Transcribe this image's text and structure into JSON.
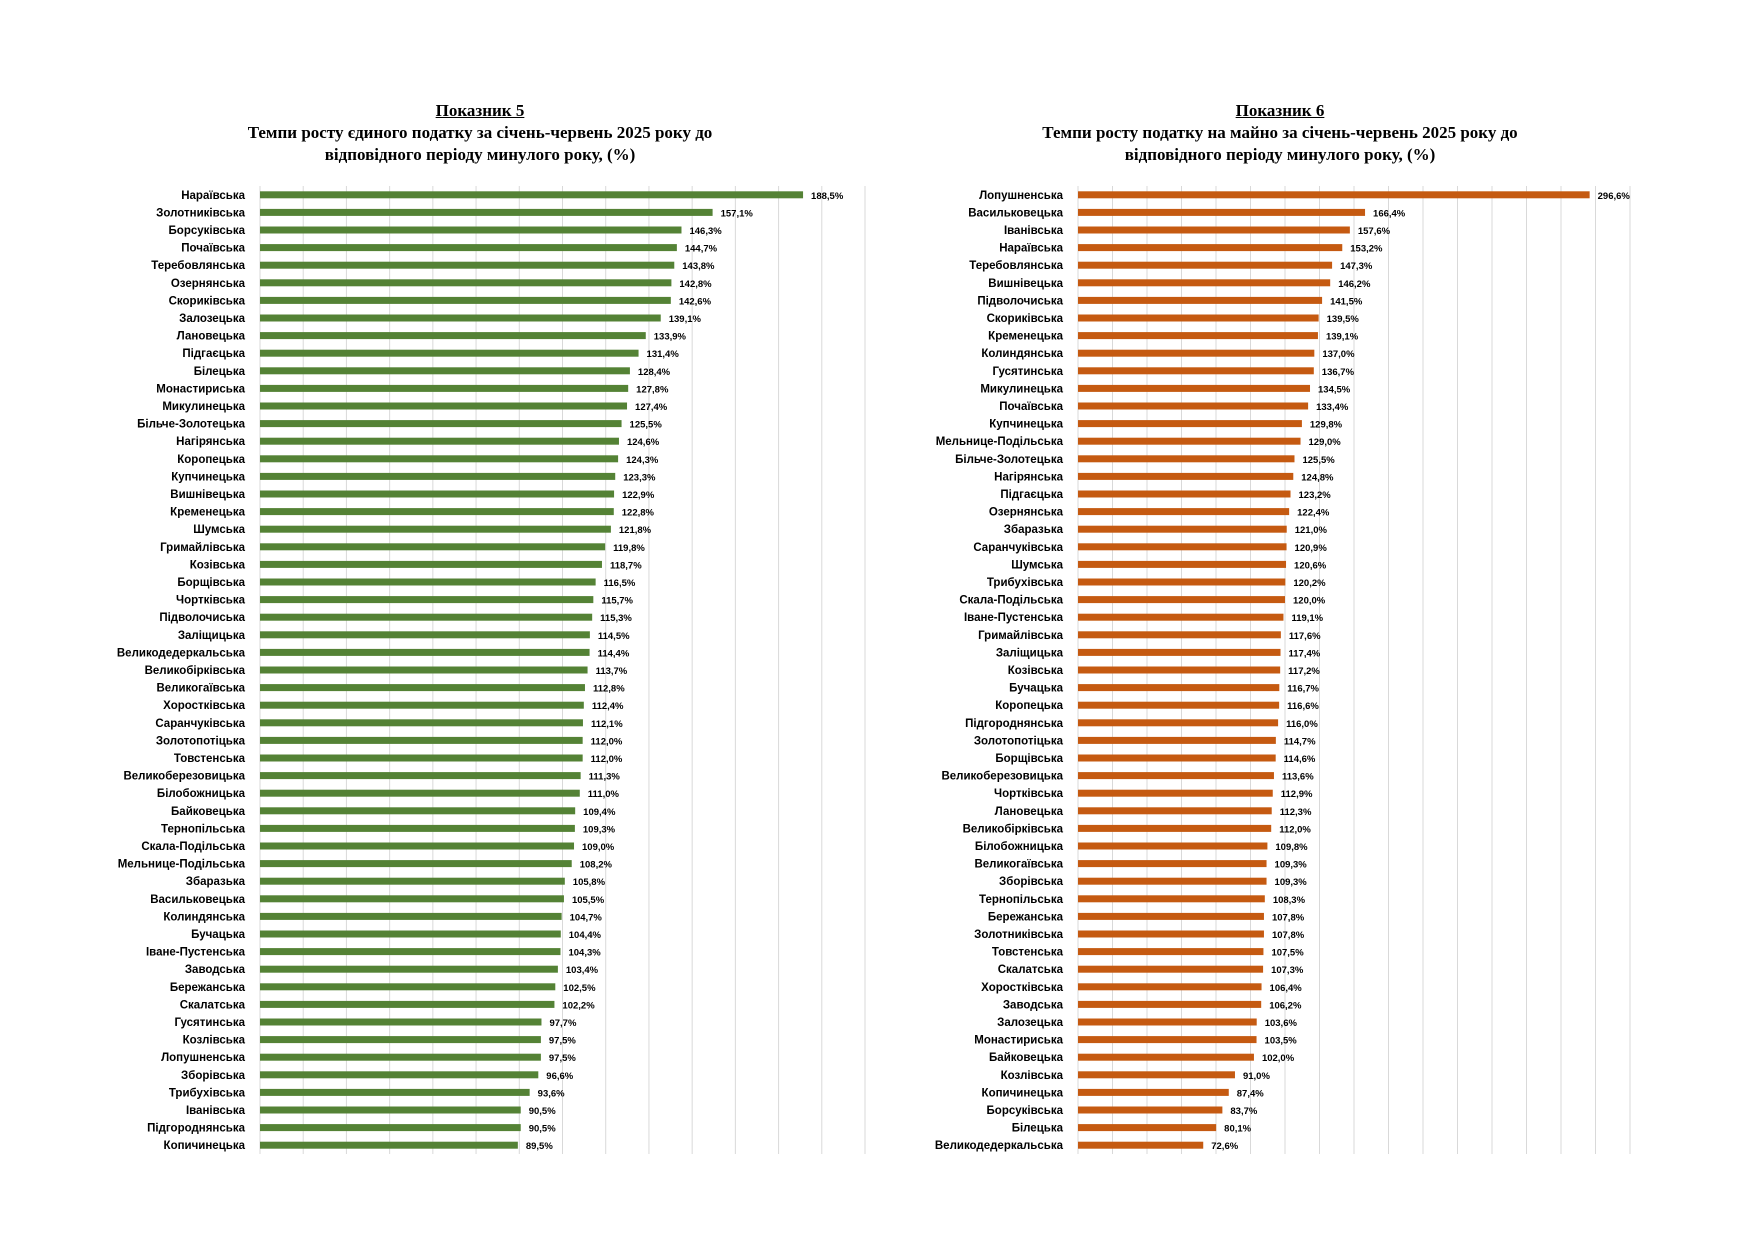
{
  "chart_data": [
    {
      "type": "bar",
      "orientation": "horizontal",
      "title_heading": "Показник 5",
      "title_lines": [
        "Темпи росту єдиного податку за  січень-червень 2025 року до",
        "відповідного періоду минулого року, (%)"
      ],
      "color": "#548235",
      "grid": true,
      "xlim": [
        0,
        210
      ],
      "categories": [
        "Нараївська",
        "Золотниківська",
        "Борсуківська",
        "Почаївська",
        "Теребовлянська",
        "Озернянська",
        "Скориківська",
        "Залозецька",
        "Лановецька",
        "Підгаєцька",
        "Білецька",
        "Монастириська",
        "Микулинецька",
        "Більче-Золотецька",
        "Нагірянська",
        "Коропецька",
        "Купчинецька",
        "Вишнівецька",
        "Кременецька",
        "Шумська",
        "Гримайлівська",
        "Козівська",
        "Борщівська",
        "Чортківська",
        "Підволочиська",
        "Заліщицька",
        "Великодедеркальська",
        "Великобірківська",
        "Великогаївська",
        "Хоростківська",
        "Саранчуківська",
        "Золотопотіцька",
        "Товстенська",
        "Великоберезовицька",
        "Білобожницька",
        "Байковецька",
        "Тернопільська",
        "Скала-Подільська",
        "Мельнице-Подільська",
        "Збаразька",
        "Васильковецька",
        "Колиндянська",
        "Бучацька",
        "Іване-Пустенська",
        "Заводська",
        "Бережанська",
        "Скалатська",
        "Гусятинська",
        "Козлівська",
        "Лопушненська",
        "Зборівська",
        "Трибухівська",
        "Іванівська",
        "Підгороднянська",
        "Копичинецька"
      ],
      "values": [
        188.5,
        157.1,
        146.3,
        144.7,
        143.8,
        142.8,
        142.6,
        139.1,
        133.9,
        131.4,
        128.4,
        127.8,
        127.4,
        125.5,
        124.6,
        124.3,
        123.3,
        122.9,
        122.8,
        121.8,
        119.8,
        118.7,
        116.5,
        115.7,
        115.3,
        114.5,
        114.4,
        113.7,
        112.8,
        112.4,
        112.1,
        112.0,
        112.0,
        111.3,
        111.0,
        109.4,
        109.3,
        109.0,
        108.2,
        105.8,
        105.5,
        104.7,
        104.4,
        104.3,
        103.4,
        102.5,
        102.2,
        97.7,
        97.5,
        97.5,
        96.6,
        93.6,
        90.5,
        90.5,
        89.5
      ],
      "value_labels": [
        "188,5%",
        "157,1%",
        "146,3%",
        "144,7%",
        "143,8%",
        "142,8%",
        "142,6%",
        "139,1%",
        "133,9%",
        "131,4%",
        "128,4%",
        "127,8%",
        "127,4%",
        "125,5%",
        "124,6%",
        "124,3%",
        "123,3%",
        "122,9%",
        "122,8%",
        "121,8%",
        "119,8%",
        "118,7%",
        "116,5%",
        "115,7%",
        "115,3%",
        "114,5%",
        "114,4%",
        "113,7%",
        "112,8%",
        "112,4%",
        "112,1%",
        "112,0%",
        "112,0%",
        "111,3%",
        "111,0%",
        "109,4%",
        "109,3%",
        "109,0%",
        "108,2%",
        "105,8%",
        "105,5%",
        "104,7%",
        "104,4%",
        "104,3%",
        "103,4%",
        "102,5%",
        "102,2%",
        "97,7%",
        "97,5%",
        "97,5%",
        "96,6%",
        "93,6%",
        "90,5%",
        "90,5%",
        "89,5%"
      ]
    },
    {
      "type": "bar",
      "orientation": "horizontal",
      "title_heading": "Показник 6",
      "title_lines": [
        "Темпи росту податку на майно за  січень-червень 2025 року до",
        "відповідного періоду минулого року, (%)"
      ],
      "color": "#C55A11",
      "grid": true,
      "xlim": [
        0,
        320
      ],
      "categories": [
        "Лопушненська",
        "Васильковецька",
        "Іванівська",
        "Нараївська",
        "Теребовлянська",
        "Вишнівецька",
        "Підволочиська",
        "Скориківська",
        "Кременецька",
        "Колиндянська",
        "Гусятинська",
        "Микулинецька",
        "Почаївська",
        "Купчинецька",
        "Мельнице-Подільська",
        "Більче-Золотецька",
        "Нагірянська",
        "Підгаєцька",
        "Озернянська",
        "Збаразька",
        "Саранчуківська",
        "Шумська",
        "Трибухівська",
        "Скала-Подільська",
        "Іване-Пустенська",
        "Гримайлівська",
        "Заліщицька",
        "Козівська",
        "Бучацька",
        "Коропецька",
        "Підгороднянська",
        "Золотопотіцька",
        "Борщівська",
        "Великоберезовицька",
        "Чортківська",
        "Лановецька",
        "Великобірківська",
        "Білобожницька",
        "Великогаївська",
        "Зборівська",
        "Тернопільська",
        "Бережанська",
        "Золотниківська",
        "Товстенська",
        "Скалатська",
        "Хоростківська",
        "Заводська",
        "Залозецька",
        "Монастириська",
        "Байковецька",
        "Козлівська",
        "Копичинецька",
        "Борсуківська",
        "Білецька",
        "Великодедеркальська"
      ],
      "values": [
        296.6,
        166.4,
        157.6,
        153.2,
        147.3,
        146.2,
        141.5,
        139.5,
        139.1,
        137.0,
        136.7,
        134.5,
        133.4,
        129.8,
        129.0,
        125.5,
        124.8,
        123.2,
        122.4,
        121.0,
        120.9,
        120.6,
        120.2,
        120.0,
        119.1,
        117.6,
        117.4,
        117.2,
        116.7,
        116.6,
        116.0,
        114.7,
        114.6,
        113.6,
        112.9,
        112.3,
        112.0,
        109.8,
        109.3,
        109.3,
        108.3,
        107.8,
        107.8,
        107.5,
        107.3,
        106.4,
        106.2,
        103.6,
        103.5,
        102.0,
        91.0,
        87.4,
        83.7,
        80.1,
        72.6
      ],
      "value_labels": [
        "296,6%",
        "166,4%",
        "157,6%",
        "153,2%",
        "147,3%",
        "146,2%",
        "141,5%",
        "139,5%",
        "139,1%",
        "137,0%",
        "136,7%",
        "134,5%",
        "133,4%",
        "129,8%",
        "129,0%",
        "125,5%",
        "124,8%",
        "123,2%",
        "122,4%",
        "121,0%",
        "120,9%",
        "120,6%",
        "120,2%",
        "120,0%",
        "119,1%",
        "117,6%",
        "117,4%",
        "117,2%",
        "116,7%",
        "116,6%",
        "116,0%",
        "114,7%",
        "114,6%",
        "113,6%",
        "112,9%",
        "112,3%",
        "112,0%",
        "109,8%",
        "109,3%",
        "109,3%",
        "108,3%",
        "107,8%",
        "107,8%",
        "107,5%",
        "107,3%",
        "106,4%",
        "106,2%",
        "103,6%",
        "103,5%",
        "102,0%",
        "91,0%",
        "87,4%",
        "83,7%",
        "80,1%",
        "72,6%"
      ]
    }
  ]
}
